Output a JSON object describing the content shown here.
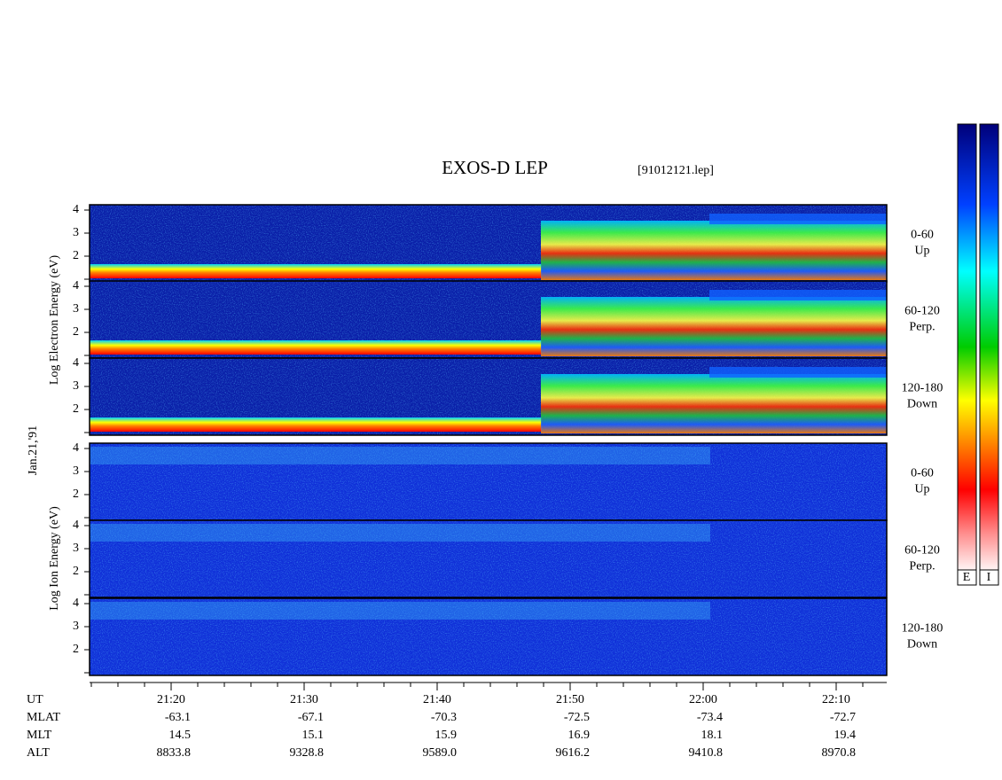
{
  "title": "EXOS-D LEP",
  "file": "[91012121.lep]",
  "date_label": "Jan.21,'91",
  "electron_axis_label": "Log  Electron  Energy (eV)",
  "ion_axis_label": "Log  Ion  Energy (eV)",
  "yticks": [
    2,
    3,
    4
  ],
  "panels": [
    {
      "label": "0-60",
      "sublabel": "Up"
    },
    {
      "label": "60-120",
      "sublabel": "Perp."
    },
    {
      "label": "120-180",
      "sublabel": "Down"
    },
    {
      "label": "0-60",
      "sublabel": "Up"
    },
    {
      "label": "60-120",
      "sublabel": "Perp."
    },
    {
      "label": "120-180",
      "sublabel": "Down"
    }
  ],
  "footer": {
    "rows": [
      {
        "name": "UT",
        "values": [
          "21:20",
          "21:30",
          "21:40",
          "21:50",
          "22:00",
          "22:10"
        ]
      },
      {
        "name": "MLAT",
        "values": [
          -63.1,
          -67.1,
          -70.3,
          -72.5,
          -73.4,
          -72.7
        ]
      },
      {
        "name": "MLT",
        "values": [
          14.5,
          15.1,
          15.9,
          16.9,
          18.1,
          19.4
        ]
      },
      {
        "name": "ALT",
        "values": [
          8833.8,
          9328.8,
          "9589.0",
          9616.2,
          9410.8,
          8970.8
        ]
      }
    ]
  },
  "colorbar_labels": [
    "E",
    "I"
  ]
}
